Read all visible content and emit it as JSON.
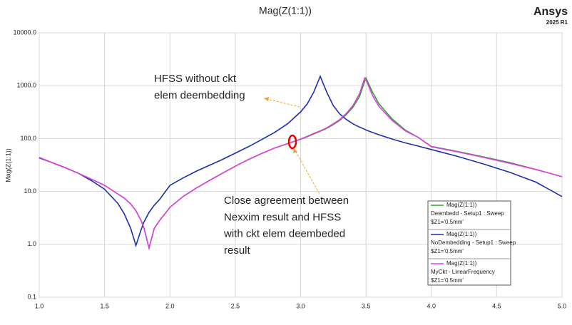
{
  "chart_data": {
    "type": "line",
    "title": "Mag(Z(1:1))",
    "brand": "Ansys",
    "version": "2025 R1",
    "y_label": "Mag(Z(1:1))",
    "log_y": true,
    "grid": true,
    "xlim": [
      1.0,
      5.0
    ],
    "xticks": [
      {
        "value": 1.0,
        "label": "1.0"
      },
      {
        "value": 1.5,
        "label": "1.5"
      },
      {
        "value": 2.0,
        "label": "2.0"
      },
      {
        "value": 2.5,
        "label": "2.5"
      },
      {
        "value": 3.0,
        "label": "3.0"
      },
      {
        "value": 3.5,
        "label": "3.5"
      },
      {
        "value": 4.0,
        "label": "4.0"
      },
      {
        "value": 4.5,
        "label": "4.5"
      },
      {
        "value": 5.0,
        "label": "5.0"
      }
    ],
    "ylim": [
      0.1,
      10000
    ],
    "yticks": [
      {
        "value": 0.1,
        "label": "0.1"
      },
      {
        "value": 1,
        "label": "1.0"
      },
      {
        "value": 10,
        "label": "10.0"
      },
      {
        "value": 100,
        "label": "100.0"
      },
      {
        "value": 1000,
        "label": "1000.0"
      },
      {
        "value": 10000,
        "label": "10000.0"
      }
    ],
    "x": [
      1.0,
      1.1,
      1.2,
      1.3,
      1.4,
      1.5,
      1.6,
      1.65,
      1.7,
      1.74,
      1.78,
      1.8,
      1.84,
      1.88,
      1.92,
      2.0,
      2.1,
      2.2,
      2.3,
      2.4,
      2.5,
      2.6,
      2.7,
      2.8,
      2.9,
      3.0,
      3.05,
      3.1,
      3.15,
      3.2,
      3.25,
      3.3,
      3.35,
      3.4,
      3.45,
      3.49,
      3.5,
      3.55,
      3.6,
      3.7,
      3.8,
      3.9,
      4.0,
      4.2,
      4.4,
      4.6,
      4.8,
      5.0
    ],
    "series": [
      {
        "name": "Mag(Z(1:1))",
        "source": "Deembedd - Setup1 : Sweep",
        "variation": "$Z1='0.5mm'",
        "color": "#2ca02c",
        "values": [
          44,
          35,
          28,
          22,
          17,
          13,
          9,
          7.5,
          5.8,
          4.3,
          2.8,
          2.1,
          0.85,
          2.0,
          2.8,
          5,
          8,
          11.5,
          16,
          22,
          30,
          40,
          52,
          66,
          80,
          97,
          108,
          122,
          137,
          156,
          184,
          222,
          285,
          390,
          620,
          1200,
          1400,
          750,
          450,
          235,
          145,
          105,
          71,
          57,
          45,
          35,
          26,
          19
        ]
      },
      {
        "name": "Mag(Z(1:1))",
        "source": "NoDembedding - Setup1 : Sweep",
        "variation": "$Z1='0.5mm'",
        "color": "#1c2fa8",
        "values": [
          43,
          35,
          28,
          22,
          16,
          11,
          6,
          3.8,
          2.0,
          0.95,
          1.9,
          2.6,
          4,
          5.5,
          7,
          13,
          18,
          24,
          31,
          40,
          53,
          70,
          95,
          130,
          190,
          320,
          450,
          750,
          1500,
          750,
          420,
          290,
          230,
          190,
          165,
          150,
          145,
          130,
          118,
          98,
          83,
          72,
          62,
          46,
          33,
          23,
          15,
          8
        ]
      },
      {
        "name": "Mag(Z(1:1))",
        "source": "MyCkt - LinearFrequency",
        "variation": "$Z1='0.5mm'",
        "color": "#e040e0",
        "values": [
          44,
          35,
          28,
          22,
          17,
          13,
          9,
          7.5,
          5.8,
          4.3,
          2.8,
          2.1,
          0.85,
          2.0,
          2.8,
          5,
          8,
          11.5,
          16,
          22,
          30,
          40,
          52,
          66,
          80,
          98,
          110,
          125,
          140,
          160,
          190,
          230,
          300,
          420,
          700,
          1400,
          1300,
          650,
          400,
          220,
          140,
          105,
          70,
          56,
          44,
          34,
          26,
          19
        ]
      }
    ],
    "annotations": [
      {
        "lines": [
          "HFSS without ckt",
          "elem deembedding"
        ]
      },
      {
        "lines": [
          "Close agreement between",
          "Nexxim result and HFSS",
          "with ckt elem deembeded",
          "result"
        ]
      }
    ]
  }
}
